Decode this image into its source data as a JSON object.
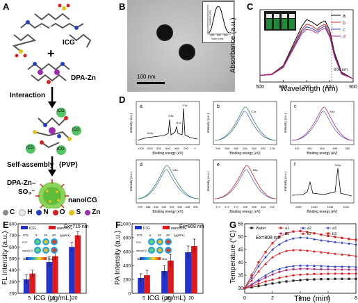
{
  "panels": {
    "A": {
      "letter": "A",
      "labels": {
        "icg": "ICG",
        "plus": "+",
        "dpa_zn": "DPA-Zn",
        "interaction": "Interaction",
        "self_assembly": "Self-assembly",
        "pvp": "(PVP)",
        "dpa_zn2": "DPA-Zn–",
        "so3": "SO₃⁻",
        "nanoicg": "nanoICG",
        "ball_labels": [
          "ICG",
          "ICG",
          "ICG",
          "ICG"
        ]
      },
      "legend": [
        {
          "symbol": "C",
          "color": "#8a8a8a"
        },
        {
          "symbol": "H",
          "color": "#e8e8e8"
        },
        {
          "symbol": "N",
          "color": "#2a3fbf"
        },
        {
          "symbol": "O",
          "color": "#d62020"
        },
        {
          "symbol": "S",
          "color": "#e1c21b"
        },
        {
          "symbol": "Zn",
          "color": "#9b2fae"
        }
      ]
    },
    "B": {
      "letter": "B",
      "scale_bar": "100 nm",
      "inset": {
        "ylabel": "Number (%)",
        "xlabel": "Size (nm)",
        "yticks": [
          "0",
          "10",
          "20"
        ],
        "xticks": [
          "100",
          "200",
          "300"
        ]
      }
    },
    "C": {
      "letter": "C",
      "ylabel": "Absorbance (a.u.)",
      "xlabel": "Wavelength (nm)",
      "xticks": [
        "500",
        "600",
        "700",
        "800",
        "900"
      ],
      "annotation": "808 nm",
      "legend": [
        {
          "name": "a",
          "color": "#000000"
        },
        {
          "name": "b",
          "color": "#d62020"
        },
        {
          "name": "c",
          "color": "#2a3fbf"
        },
        {
          "name": "d",
          "color": "#b0287d"
        }
      ]
    },
    "D": {
      "letter": "D",
      "ylabel": "Intensity (a.u.)",
      "xlabel": "Binding energy (eV)",
      "subpanels": [
        {
          "letter": "a",
          "xticks": [
            "1200",
            "1000",
            "800",
            "600",
            "400",
            "200",
            "0"
          ],
          "peaks": [
            "C1s",
            "N1s",
            "O1s",
            "Zn2p"
          ]
        },
        {
          "letter": "b",
          "xticks": [
            "290",
            "288",
            "286",
            "284",
            "282",
            "280",
            "278"
          ],
          "peaks": [
            "C1s"
          ]
        },
        {
          "letter": "c",
          "xticks": [
            "410",
            "405",
            "400",
            "395",
            "390"
          ],
          "peaks": [
            "N1s"
          ]
        },
        {
          "letter": "d",
          "xticks": [
            "540",
            "538",
            "536",
            "534",
            "532",
            "530",
            "528",
            "526"
          ],
          "peaks": [
            "O1s"
          ]
        },
        {
          "letter": "e",
          "xticks": [
            "174",
            "172",
            "170",
            "168",
            "166",
            "164",
            "162"
          ],
          "peaks": [
            "S2p"
          ]
        },
        {
          "letter": "f",
          "xticks": [
            "1050",
            "1040",
            "1030",
            "1020"
          ],
          "peaks": [
            "Zn2p"
          ]
        }
      ]
    },
    "E": {
      "letter": "E",
      "ylabel": "FL Intensity (a.u.)",
      "xlabel": "ICG (μg/mL)",
      "ex_label": "Ex=715 nm",
      "inset_header": [
        "ICG",
        "5",
        "10",
        "20",
        "(μg/mL)"
      ],
      "inset_rows": [
        "ICG",
        "nanoICG"
      ],
      "scale_labels": [
        "Min",
        "Max"
      ]
    },
    "F": {
      "letter": "F",
      "ylabel": "PA Intensity (a.u.)",
      "xlabel": "ICG (μg/mL)",
      "ex_label": "Ex=808 nm",
      "inset_header": [
        "ICG",
        "5",
        "10",
        "20",
        "(μg/mL)"
      ],
      "inset_rows": [
        "ICG",
        "nanoICG"
      ],
      "scale_labels": [
        "Min",
        "Max"
      ]
    },
    "G": {
      "letter": "G",
      "ylabel": "Temperature (°C)",
      "xlabel": "Time (min)",
      "ex_label": "Ex=808 nm"
    }
  },
  "chart_data": [
    {
      "id": "C",
      "type": "line",
      "xlabel": "Wavelength (nm)",
      "ylabel": "Absorbance (a.u.)",
      "xlim": [
        500,
        900
      ],
      "ylim": [
        0,
        1.1
      ],
      "x": [
        500,
        550,
        600,
        640,
        680,
        700,
        720,
        745,
        760,
        780,
        800,
        820,
        850,
        900
      ],
      "series": [
        {
          "name": "a",
          "color": "#000000",
          "values": [
            0.1,
            0.12,
            0.25,
            0.55,
            0.85,
            0.95,
            0.92,
            0.86,
            0.9,
            0.93,
            0.78,
            0.45,
            0.15,
            0.05
          ]
        },
        {
          "name": "b",
          "color": "#d62020",
          "values": [
            0.1,
            0.12,
            0.24,
            0.52,
            0.8,
            0.88,
            0.86,
            0.8,
            0.85,
            0.88,
            0.74,
            0.42,
            0.14,
            0.05
          ]
        },
        {
          "name": "c",
          "color": "#2a3fbf",
          "values": [
            0.1,
            0.11,
            0.23,
            0.5,
            0.77,
            0.84,
            0.82,
            0.77,
            0.82,
            0.85,
            0.7,
            0.4,
            0.13,
            0.05
          ]
        },
        {
          "name": "d",
          "color": "#b0287d",
          "values": [
            0.1,
            0.11,
            0.22,
            0.48,
            0.74,
            0.8,
            0.79,
            0.74,
            0.79,
            0.82,
            0.68,
            0.38,
            0.12,
            0.05
          ]
        }
      ],
      "vline": 808
    },
    {
      "id": "E",
      "type": "bar",
      "xlabel": "ICG (μg/mL)",
      "ylabel": "FL Intensity (a.u.)",
      "categories": [
        "5",
        "10",
        "20"
      ],
      "ylim": [
        200,
        800
      ],
      "yticks": [
        200,
        300,
        400,
        500,
        600,
        700,
        800
      ],
      "series": [
        {
          "name": "ICG",
          "color": "#2233cc",
          "values": [
            320,
            470,
            600
          ],
          "errors": [
            40,
            45,
            40
          ]
        },
        {
          "name": "nanoICG",
          "color": "#e01a1a",
          "values": [
            370,
            520,
            700
          ],
          "errors": [
            30,
            40,
            30
          ]
        }
      ]
    },
    {
      "id": "F",
      "type": "bar",
      "xlabel": "ICG (μg/mL)",
      "ylabel": "PA Intensity (a.u.)",
      "categories": [
        "5",
        "10",
        "20"
      ],
      "ylim": [
        0,
        1000
      ],
      "yticks": [
        0,
        200,
        400,
        600,
        800,
        1000
      ],
      "series": [
        {
          "name": "ICG",
          "color": "#2233cc",
          "values": [
            220,
            320,
            590
          ],
          "errors": [
            60,
            80,
            90
          ]
        },
        {
          "name": "nanoICG",
          "color": "#e01a1a",
          "values": [
            260,
            470,
            680
          ],
          "errors": [
            70,
            90,
            100
          ]
        }
      ]
    },
    {
      "id": "G",
      "type": "line",
      "xlabel": "Time (min)",
      "ylabel": "Temperature (°C)",
      "xlim": [
        0,
        8
      ],
      "ylim": [
        28,
        55
      ],
      "xticks": [
        0,
        2,
        4,
        6,
        8
      ],
      "yticks": [
        30,
        35,
        40,
        45,
        50,
        55
      ],
      "x": [
        0,
        0.5,
        1,
        1.5,
        2,
        2.5,
        3,
        3.5,
        4,
        4.5,
        5,
        5.5,
        6,
        6.5,
        7,
        7.5,
        8
      ],
      "series": [
        {
          "name": "Water",
          "color": "#222222",
          "marker": "square",
          "values": [
            30,
            30.3,
            30.8,
            31.3,
            31.8,
            32.2,
            32.6,
            32.9,
            33.1,
            33.3,
            33.4,
            33.5,
            33.5,
            33.6,
            33.6,
            33.6,
            33.6
          ]
        },
        {
          "name": "a1",
          "color": "#d62020",
          "marker": "circle",
          "values": [
            30,
            30.8,
            31.7,
            32.6,
            33.3,
            34,
            34.5,
            35,
            35.2,
            35.4,
            35.5,
            35.5,
            35.6,
            35.6,
            35.6,
            35.6,
            35.6
          ]
        },
        {
          "name": "a2",
          "color": "#2a3fbf",
          "marker": "triangle",
          "values": [
            30,
            31.5,
            33.3,
            35,
            36.5,
            37.5,
            38.2,
            38.6,
            38.8,
            38.8,
            38.7,
            38.6,
            38.5,
            38.4,
            38.4,
            38.3,
            38.3
          ]
        },
        {
          "name": "a3",
          "color": "#2a3fbf",
          "marker": "star",
          "values": [
            30,
            34,
            38.5,
            42,
            45,
            47,
            48.5,
            49.3,
            49.7,
            49.5,
            49,
            48.6,
            48.2,
            47.9,
            47.6,
            47.3,
            47
          ]
        },
        {
          "name": "b1",
          "color": "#b0287d",
          "marker": "circle",
          "values": [
            30,
            31.3,
            32.7,
            34.1,
            35.3,
            36.3,
            37,
            37.3,
            37.5,
            37.5,
            37.4,
            37.3,
            37.3,
            37.2,
            37.2,
            37.2,
            37.2
          ]
        },
        {
          "name": "b2",
          "color": "#d62020",
          "marker": "triangle",
          "values": [
            30,
            33,
            36.5,
            39.5,
            42,
            43.5,
            44.5,
            44.8,
            44.8,
            44.6,
            44.3,
            44,
            43.7,
            43.4,
            43.1,
            42.8,
            42.5
          ]
        },
        {
          "name": "b3",
          "color": "#d62020",
          "marker": "square",
          "values": [
            30,
            35,
            40,
            44,
            47.5,
            50,
            51.3,
            52,
            52.2,
            51.8,
            51.3,
            50.8,
            50.3,
            49.9,
            49.5,
            49.1,
            48.8
          ]
        }
      ]
    }
  ]
}
